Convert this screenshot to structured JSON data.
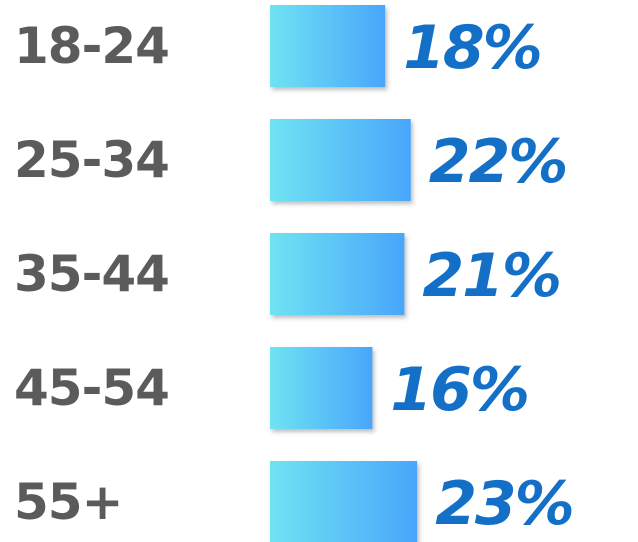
{
  "chart_data": {
    "type": "bar",
    "orientation": "horizontal",
    "categories": [
      "18-24",
      "25-34",
      "35-44",
      "45-54",
      "55+"
    ],
    "values": [
      18,
      22,
      21,
      16,
      23
    ],
    "value_labels": [
      "18%",
      "22%",
      "21%",
      "16%",
      "23%"
    ],
    "unit": "%",
    "title": "",
    "xlabel": "",
    "ylabel": "",
    "grid": false,
    "legend": "none"
  },
  "colors": {
    "category_text": "#5b5b5b",
    "value_text": "#1470c7",
    "bar_gradient_start": "#6fe3f3",
    "bar_gradient_end": "#49a6fb"
  }
}
